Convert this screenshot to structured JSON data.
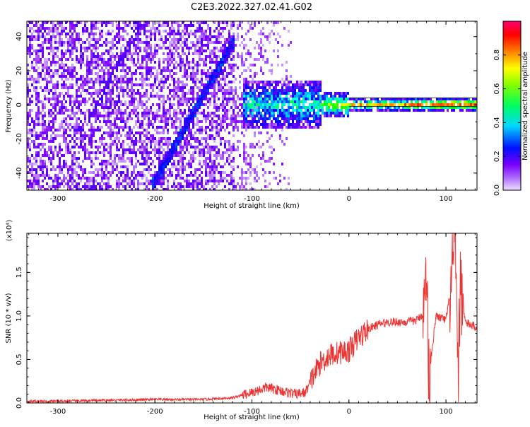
{
  "title": "C2E3.2022.327.02.41.G02",
  "chart_data": [
    {
      "type": "heatmap",
      "title": "C2E3.2022.327.02.41.G02",
      "xlabel": "Height of straight line (km)",
      "ylabel": "Frequency (Hz)",
      "xlim": [
        -332,
        132
      ],
      "ylim": [
        -50,
        49
      ],
      "xticks": [
        -300,
        -200,
        -100,
        0,
        100
      ],
      "xtick_labels": [
        "-300",
        "-200",
        "-100",
        "0",
        "100"
      ],
      "yticks": [
        -40,
        -20,
        0,
        20,
        40
      ],
      "ytick_labels": [
        "-40",
        "-20",
        "0",
        "20",
        "40"
      ],
      "colorbar": {
        "label": "Normalized spectral amplitude",
        "range": [
          0,
          1
        ],
        "ticks": [
          0,
          0.2,
          0.4,
          0.6,
          0.8
        ],
        "tick_labels": [
          "0.0",
          "0.2",
          "0.4",
          "0.6",
          "0.8"
        ],
        "colormap": [
          "#e8d8ff",
          "#8000ff",
          "#0000ff",
          "#00ffff",
          "#00ff00",
          "#ffff00",
          "#ff8000",
          "#ff0000",
          "#ff0080"
        ]
      },
      "features": [
        {
          "name": "diagonal streak",
          "x": [
            -205,
            -118
          ],
          "y": [
            -48,
            40
          ]
        },
        {
          "name": "horizontal band",
          "x": [
            -110,
            132
          ],
          "y": [
            0,
            0
          ]
        }
      ]
    },
    {
      "type": "line",
      "xlabel": "Height of straight line (km)",
      "ylabel": "SNR (10 * v/v)",
      "y_multiplier": "(x10⁴)",
      "xlim": [
        -332,
        132
      ],
      "ylim": [
        0,
        1.95
      ],
      "xticks": [
        -300,
        -200,
        -100,
        0,
        100
      ],
      "xtick_labels": [
        "-300",
        "-200",
        "-100",
        "0",
        "100"
      ],
      "yticks": [
        0,
        0.5,
        1.0,
        1.5
      ],
      "ytick_labels": [
        "0.0",
        "0.5",
        "1.0",
        "1.5"
      ],
      "color": "#ee3333",
      "series": [
        {
          "x": [
            -332,
            -300,
            -250,
            -200,
            -150,
            -120,
            -100,
            -85,
            -70,
            -55,
            -45,
            -35,
            -30,
            -20,
            -10,
            0,
            10,
            20,
            30,
            40,
            50,
            60,
            70,
            78,
            80,
            82,
            90,
            100,
            105,
            110,
            112,
            115,
            120,
            132
          ],
          "values": [
            0.02,
            0.02,
            0.03,
            0.04,
            0.04,
            0.06,
            0.12,
            0.18,
            0.14,
            0.1,
            0.12,
            0.35,
            0.45,
            0.55,
            0.58,
            0.6,
            0.75,
            0.85,
            0.9,
            0.93,
            0.93,
            0.93,
            0.95,
            1.05,
            1.7,
            0.3,
            1.0,
            0.95,
            1.3,
            1.9,
            0.15,
            1.4,
            0.92,
            0.87
          ]
        }
      ]
    }
  ]
}
